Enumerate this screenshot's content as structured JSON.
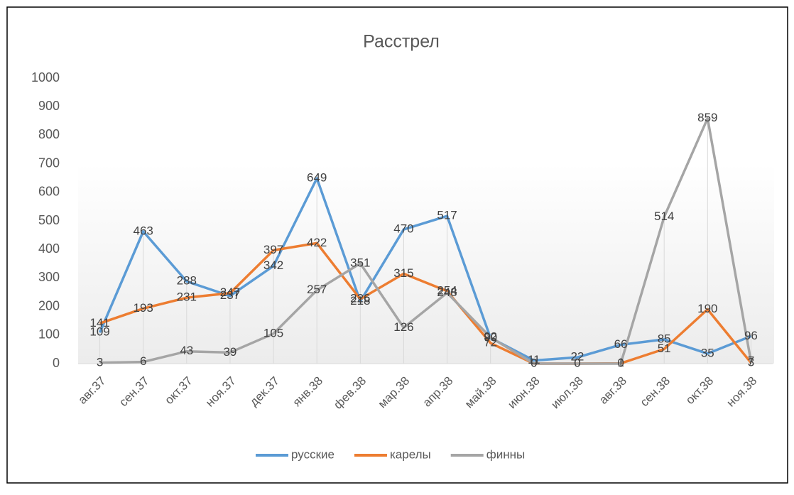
{
  "chart_data": {
    "type": "line",
    "title": "Расстрел",
    "categories": [
      "авг.37",
      "сен.37",
      "окт.37",
      "ноя.37",
      "дек.37",
      "янв.38",
      "фев.38",
      "мар.38",
      "апр.38",
      "май.38",
      "июн.38",
      "июл.38",
      "авг.38",
      "сен.38",
      "окт.38",
      "ноя.38"
    ],
    "series": [
      {
        "name": "русские",
        "color": "#5b9bd5",
        "values": [
          109,
          463,
          288,
          237,
          342,
          649,
          218,
          470,
          517,
          90,
          11,
          22,
          66,
          85,
          35,
          96
        ]
      },
      {
        "name": "карелы",
        "color": "#ed7d31",
        "values": [
          141,
          193,
          231,
          247,
          397,
          422,
          226,
          315,
          254,
          72,
          0,
          0,
          1,
          51,
          190,
          3
        ]
      },
      {
        "name": "финны",
        "color": "#a5a5a5",
        "values": [
          3,
          6,
          43,
          39,
          105,
          257,
          351,
          126,
          248,
          92,
          0,
          0,
          0,
          514,
          859,
          7
        ]
      }
    ],
    "ylim": [
      0,
      1000
    ],
    "yticks": [
      0,
      100,
      200,
      300,
      400,
      500,
      600,
      700,
      800,
      900,
      1000
    ],
    "legend": "bottom",
    "grid": false
  }
}
